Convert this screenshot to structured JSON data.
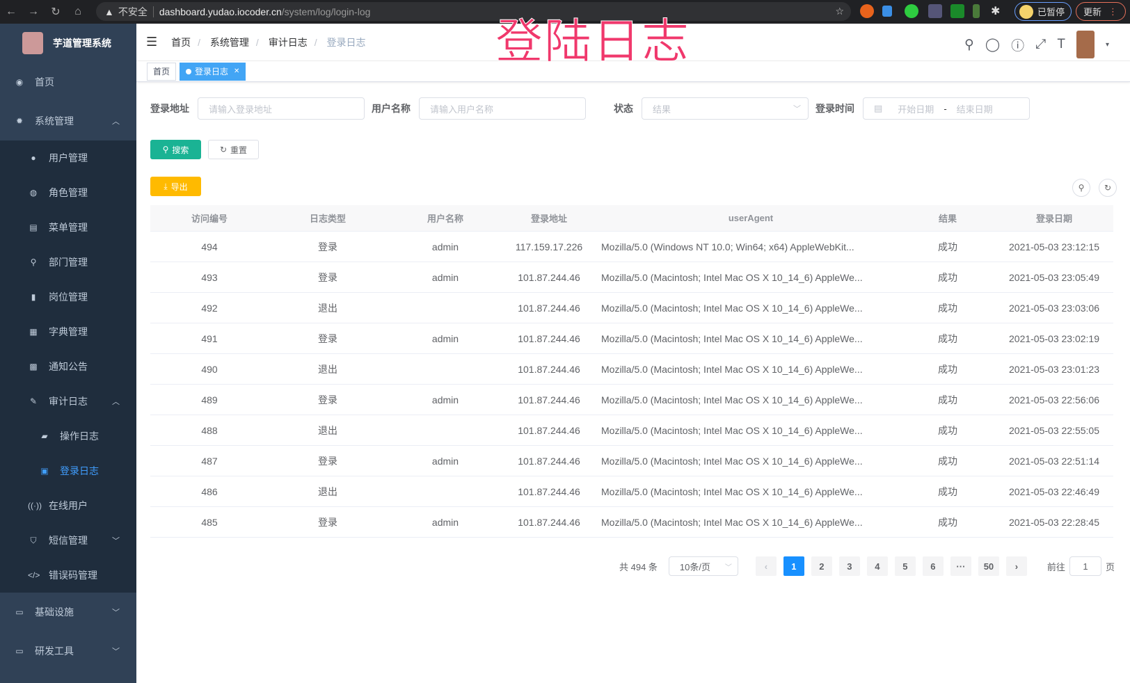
{
  "browser": {
    "security": "不安全",
    "host": "dashboard.yudao.iocoder.cn",
    "path": "/system/log/login-log",
    "paused": "已暂停",
    "update": "更新"
  },
  "overlay_title": "登陆日志",
  "sidebar": {
    "title": "芋道管理系统",
    "items": [
      {
        "label": "首页",
        "icon": "dashboard-icon"
      },
      {
        "label": "系统管理",
        "icon": "gear-icon",
        "expanded": true,
        "children": [
          {
            "label": "用户管理",
            "icon": "user-icon"
          },
          {
            "label": "角色管理",
            "icon": "role-icon"
          },
          {
            "label": "菜单管理",
            "icon": "menu-icon"
          },
          {
            "label": "部门管理",
            "icon": "tree-icon"
          },
          {
            "label": "岗位管理",
            "icon": "post-icon"
          },
          {
            "label": "字典管理",
            "icon": "dict-icon"
          },
          {
            "label": "通知公告",
            "icon": "message-icon"
          },
          {
            "label": "审计日志",
            "icon": "edit-icon",
            "expanded": true,
            "children": [
              {
                "label": "操作日志",
                "icon": "form-icon"
              },
              {
                "label": "登录日志",
                "icon": "logininfor-icon",
                "active": true
              }
            ]
          },
          {
            "label": "在线用户",
            "icon": "online-icon"
          },
          {
            "label": "短信管理",
            "icon": "shield-icon"
          },
          {
            "label": "错误码管理",
            "icon": "code-icon"
          }
        ]
      },
      {
        "label": "基础设施",
        "icon": "monitor-icon"
      },
      {
        "label": "研发工具",
        "icon": "tool-icon"
      }
    ]
  },
  "breadcrumb": [
    "首页",
    "系统管理",
    "审计日志",
    "登录日志"
  ],
  "tags": [
    {
      "label": "首页"
    },
    {
      "label": "登录日志",
      "active": true
    }
  ],
  "filters": {
    "address_label": "登录地址",
    "address_placeholder": "请输入登录地址",
    "username_label": "用户名称",
    "username_placeholder": "请输入用户名称",
    "status_label": "状态",
    "status_placeholder": "结果",
    "time_label": "登录时间",
    "start_placeholder": "开始日期",
    "range_sep": "-",
    "end_placeholder": "结束日期"
  },
  "buttons": {
    "search": "搜索",
    "reset": "重置",
    "export": "导出"
  },
  "colors": {
    "sidebar": "#304156",
    "primary": "#1890ff",
    "search": "#1ab394",
    "export": "#ffba00"
  },
  "table": {
    "columns": [
      "访问编号",
      "日志类型",
      "用户名称",
      "登录地址",
      "userAgent",
      "结果",
      "登录日期"
    ],
    "rows": [
      [
        "494",
        "登录",
        "admin",
        "117.159.17.226",
        "Mozilla/5.0 (Windows NT 10.0; Win64; x64) AppleWebKit...",
        "成功",
        "2021-05-03 23:12:15"
      ],
      [
        "493",
        "登录",
        "admin",
        "101.87.244.46",
        "Mozilla/5.0 (Macintosh; Intel Mac OS X 10_14_6) AppleWe...",
        "成功",
        "2021-05-03 23:05:49"
      ],
      [
        "492",
        "退出",
        "",
        "101.87.244.46",
        "Mozilla/5.0 (Macintosh; Intel Mac OS X 10_14_6) AppleWe...",
        "成功",
        "2021-05-03 23:03:06"
      ],
      [
        "491",
        "登录",
        "admin",
        "101.87.244.46",
        "Mozilla/5.0 (Macintosh; Intel Mac OS X 10_14_6) AppleWe...",
        "成功",
        "2021-05-03 23:02:19"
      ],
      [
        "490",
        "退出",
        "",
        "101.87.244.46",
        "Mozilla/5.0 (Macintosh; Intel Mac OS X 10_14_6) AppleWe...",
        "成功",
        "2021-05-03 23:01:23"
      ],
      [
        "489",
        "登录",
        "admin",
        "101.87.244.46",
        "Mozilla/5.0 (Macintosh; Intel Mac OS X 10_14_6) AppleWe...",
        "成功",
        "2021-05-03 22:56:06"
      ],
      [
        "488",
        "退出",
        "",
        "101.87.244.46",
        "Mozilla/5.0 (Macintosh; Intel Mac OS X 10_14_6) AppleWe...",
        "成功",
        "2021-05-03 22:55:05"
      ],
      [
        "487",
        "登录",
        "admin",
        "101.87.244.46",
        "Mozilla/5.0 (Macintosh; Intel Mac OS X 10_14_6) AppleWe...",
        "成功",
        "2021-05-03 22:51:14"
      ],
      [
        "486",
        "退出",
        "",
        "101.87.244.46",
        "Mozilla/5.0 (Macintosh; Intel Mac OS X 10_14_6) AppleWe...",
        "成功",
        "2021-05-03 22:46:49"
      ],
      [
        "485",
        "登录",
        "admin",
        "101.87.244.46",
        "Mozilla/5.0 (Macintosh; Intel Mac OS X 10_14_6) AppleWe...",
        "成功",
        "2021-05-03 22:28:45"
      ]
    ]
  },
  "pagination": {
    "total": "共 494 条",
    "page_size": "10条/页",
    "pages": [
      "1",
      "2",
      "3",
      "4",
      "5",
      "6",
      "···",
      "50"
    ],
    "current": "1",
    "goto_label": "前往",
    "goto_value": "1",
    "page_unit": "页"
  }
}
